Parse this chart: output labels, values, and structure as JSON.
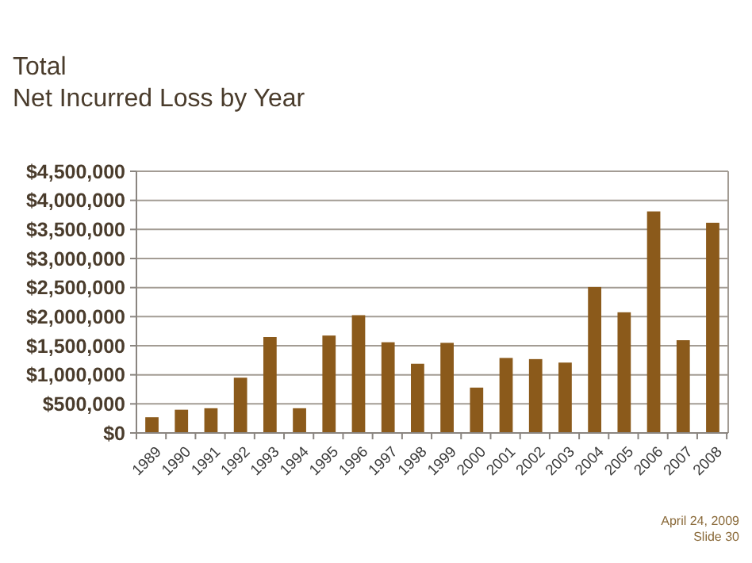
{
  "chart_data": {
    "type": "bar",
    "title": "Total\nNet Incurred Loss by Year",
    "categories": [
      "1989",
      "1990",
      "1991",
      "1992",
      "1993",
      "1994",
      "1995",
      "1996",
      "1997",
      "1998",
      "1999",
      "2000",
      "2001",
      "2002",
      "2003",
      "2004",
      "2005",
      "2006",
      "2007",
      "2008"
    ],
    "values": [
      270000,
      400000,
      425000,
      950000,
      1650000,
      425000,
      1675000,
      2025000,
      1560000,
      1190000,
      1550000,
      780000,
      1290000,
      1270000,
      1210000,
      2510000,
      2075000,
      3810000,
      1595000,
      3615000
    ],
    "color": "#8b5a1b",
    "ylim": [
      0,
      4500000
    ],
    "yticks": [
      {
        "value": 0,
        "label": "$0"
      },
      {
        "value": 500000,
        "label": "$500,000"
      },
      {
        "value": 1000000,
        "label": "$1,000,000"
      },
      {
        "value": 1500000,
        "label": "$1,500,000"
      },
      {
        "value": 2000000,
        "label": "$2,000,000"
      },
      {
        "value": 2500000,
        "label": "$2,500,000"
      },
      {
        "value": 3000000,
        "label": "$3,000,000"
      },
      {
        "value": 3500000,
        "label": "$3,500,000"
      },
      {
        "value": 4000000,
        "label": "$4,000,000"
      },
      {
        "value": 4500000,
        "label": "$4,500,000"
      }
    ],
    "grid": "y",
    "annotations": [
      "April 24, 2009",
      "Slide 30"
    ]
  }
}
